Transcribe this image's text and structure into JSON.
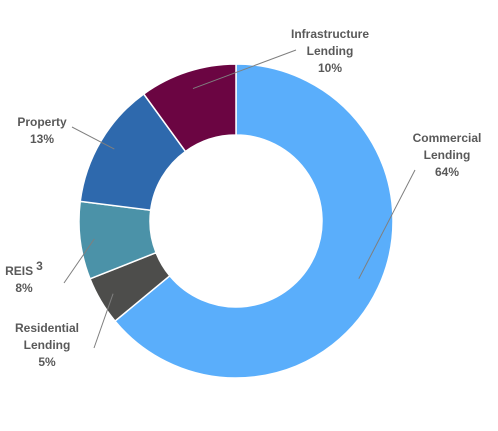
{
  "chart_data": {
    "type": "pie",
    "donut": true,
    "title": "",
    "legend": "none",
    "grid": false,
    "slices": [
      {
        "name": "Commercial Lending",
        "label_lines": [
          "Commercial",
          "Lending"
        ],
        "sup": "",
        "value": 64,
        "value_label": "64%",
        "color": "#5aaefb"
      },
      {
        "name": "Residential Lending",
        "label_lines": [
          "Residential",
          "Lending"
        ],
        "sup": "",
        "value": 5,
        "value_label": "5%",
        "color": "#4d4d4b"
      },
      {
        "name": "REIS 3",
        "label_lines": [
          "REIS"
        ],
        "sup": "3",
        "value": 8,
        "value_label": "8%",
        "color": "#4b92a8"
      },
      {
        "name": "Property",
        "label_lines": [
          "Property"
        ],
        "sup": "",
        "value": 13,
        "value_label": "13%",
        "color": "#2e69ad"
      },
      {
        "name": "Infrastructure Lending",
        "label_lines": [
          "Infrastructure",
          "Lending"
        ],
        "sup": "",
        "value": 10,
        "value_label": "10%",
        "color": "#6b0542"
      }
    ]
  }
}
